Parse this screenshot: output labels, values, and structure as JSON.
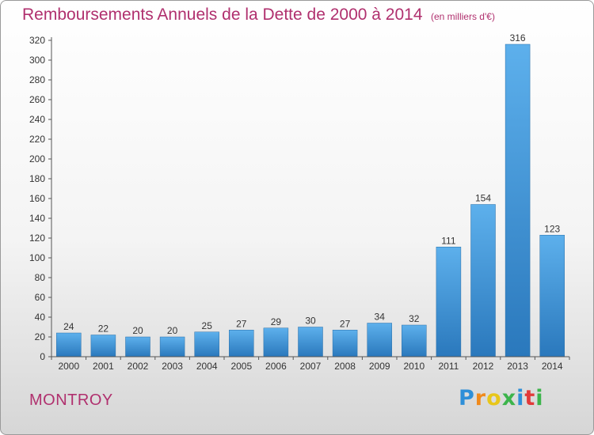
{
  "chart_data": {
    "type": "bar",
    "title": "Remboursements Annuels de la Dette de 2000 à 2014",
    "subtitle": "(en milliers d'€)",
    "xlabel": "",
    "ylabel": "",
    "categories": [
      "2000",
      "2001",
      "2002",
      "2003",
      "2004",
      "2005",
      "2006",
      "2007",
      "2008",
      "2009",
      "2010",
      "2011",
      "2012",
      "2013",
      "2014"
    ],
    "values": [
      24,
      22,
      20,
      20,
      25,
      27,
      29,
      30,
      27,
      34,
      32,
      111,
      154,
      316,
      123
    ],
    "ylim": [
      0,
      320
    ],
    "yticks": [
      0,
      20,
      40,
      60,
      80,
      100,
      120,
      140,
      160,
      180,
      200,
      220,
      240,
      260,
      280,
      300,
      320
    ],
    "grid": false,
    "bar_color": "#4a9de0"
  },
  "commune": "MONTROY",
  "logo": {
    "letters": [
      "P",
      "r",
      "o",
      "x",
      "i",
      "t",
      "i"
    ],
    "colors": [
      "#2e8fd8",
      "#f08a1c",
      "#e8c61a",
      "#3cb44b",
      "#2e8fd8",
      "#e23a3a",
      "#3cb44b"
    ]
  }
}
